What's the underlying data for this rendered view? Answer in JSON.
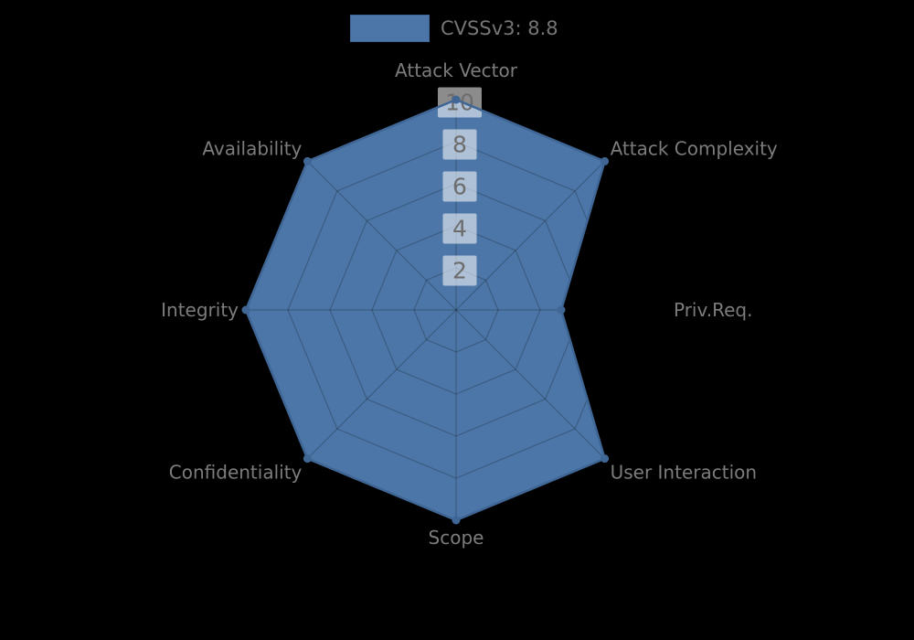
{
  "figure": {
    "background": "#000000"
  },
  "legend": {
    "label": "CVSSv3: 8.8"
  },
  "colors": {
    "series_fill": "#4c76a7",
    "series_edge": "#3f6695",
    "marker": "#3f6695",
    "grid_line": "rgba(0,0,0,0.22)",
    "tick_text": "#6d6d6d",
    "tick_box_bg": "rgba(255,255,255,0.55)",
    "axis_label_text": "#7c7c7c",
    "legend_text": "#757575"
  },
  "chart_data": {
    "type": "radar",
    "title": "CVSSv3: 8.8",
    "categories": [
      "Attack Vector",
      "Attack Complexity",
      "Priv.Req.",
      "User Interaction",
      "Scope",
      "Confidentiality",
      "Integrity",
      "Availability"
    ],
    "series": [
      {
        "name": "CVSSv3: 8.8",
        "values": [
          10,
          10,
          5,
          10,
          10,
          10,
          10,
          10
        ]
      }
    ],
    "radial_ticks": [
      2,
      4,
      6,
      8,
      10
    ],
    "radial_tick_labels": [
      "2",
      "4",
      "6",
      "8",
      "10"
    ],
    "rmin": 0,
    "rmax": 10,
    "grid": true,
    "grid_shape": "polygon",
    "direction": "clockwise",
    "start_axis": "top",
    "legend_position": "top-center"
  }
}
